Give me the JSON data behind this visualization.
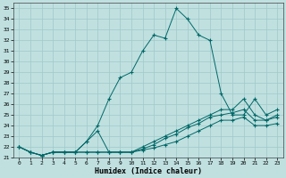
{
  "title": "",
  "xlabel": "Humidex (Indice chaleur)",
  "background_color": "#c0e0e0",
  "grid_color": "#a0c8c8",
  "line_color": "#006868",
  "xlim": [
    -0.5,
    23.5
  ],
  "ylim": [
    21.0,
    35.5
  ],
  "yticks": [
    21,
    22,
    23,
    24,
    25,
    26,
    27,
    28,
    29,
    30,
    31,
    32,
    33,
    34,
    35
  ],
  "xticks": [
    0,
    1,
    2,
    3,
    4,
    5,
    6,
    7,
    8,
    9,
    10,
    11,
    12,
    13,
    14,
    15,
    16,
    17,
    18,
    19,
    20,
    21,
    22,
    23
  ],
  "series": [
    [
      22.0,
      21.5,
      21.2,
      21.5,
      21.5,
      21.5,
      22.5,
      24.0,
      26.5,
      28.5,
      29.0,
      31.0,
      32.5,
      32.2,
      35.0,
      34.0,
      32.5,
      32.0,
      27.0,
      25.0,
      25.0,
      26.5,
      25.0,
      25.5
    ],
    [
      22.0,
      21.5,
      21.2,
      21.5,
      21.5,
      21.5,
      22.5,
      23.5,
      21.5,
      21.5,
      21.5,
      22.0,
      22.5,
      23.0,
      23.5,
      24.0,
      24.5,
      25.0,
      25.5,
      25.5,
      26.5,
      25.0,
      24.5,
      25.0
    ],
    [
      22.0,
      21.5,
      21.2,
      21.5,
      21.5,
      21.5,
      21.5,
      21.5,
      21.5,
      21.5,
      21.5,
      21.8,
      22.2,
      22.8,
      23.2,
      23.8,
      24.2,
      24.8,
      25.0,
      25.2,
      25.5,
      24.5,
      24.5,
      24.8
    ],
    [
      22.0,
      21.5,
      21.2,
      21.5,
      21.5,
      21.5,
      21.5,
      21.5,
      21.5,
      21.5,
      21.5,
      21.7,
      21.9,
      22.2,
      22.5,
      23.0,
      23.5,
      24.0,
      24.5,
      24.5,
      24.8,
      24.0,
      24.0,
      24.2
    ]
  ]
}
